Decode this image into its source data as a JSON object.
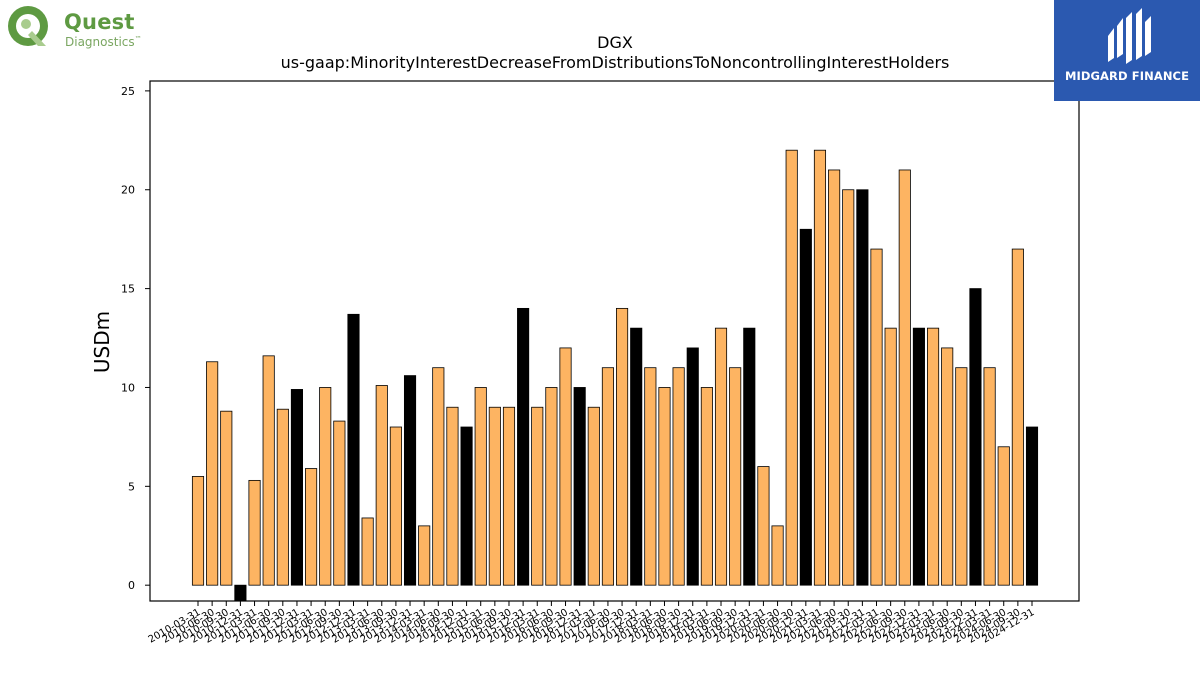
{
  "logos": {
    "quest": {
      "name": "Quest",
      "sub": "Diagnostics",
      "mark": "™"
    },
    "midgard": {
      "name": "MIDGARD FINANCE"
    }
  },
  "colors": {
    "highlight": "#fdb462",
    "emphasis": "#000000"
  },
  "chart_data": {
    "type": "bar",
    "title": "DGX",
    "subtitle": "us-gaap:MinorityInterestDecreaseFromDistributionsToNoncontrollingInterestHolders",
    "xlabel": "",
    "ylabel": "USDm",
    "ylim": [
      -0.8,
      25.5
    ],
    "yticks": [
      0,
      5,
      10,
      15,
      20,
      25
    ],
    "grid": false,
    "categories": [
      "2010-03-31",
      "2010-06-30",
      "2010-09-30",
      "2010-12-31",
      "2011-03-31",
      "2011-06-30",
      "2011-09-30",
      "2011-12-31",
      "2012-03-31",
      "2012-06-30",
      "2012-09-30",
      "2012-12-31",
      "2013-03-31",
      "2013-06-30",
      "2013-09-30",
      "2013-12-31",
      "2014-03-31",
      "2014-06-30",
      "2014-09-30",
      "2014-12-31",
      "2015-03-31",
      "2015-06-30",
      "2015-09-30",
      "2015-12-31",
      "2016-03-31",
      "2016-06-30",
      "2016-09-30",
      "2016-12-31",
      "2017-03-31",
      "2017-06-30",
      "2017-09-30",
      "2017-12-31",
      "2018-03-31",
      "2018-06-30",
      "2018-09-30",
      "2018-12-31",
      "2019-03-31",
      "2019-06-30",
      "2019-09-30",
      "2019-12-31",
      "2020-03-31",
      "2020-06-30",
      "2020-09-30",
      "2020-12-31",
      "2021-03-31",
      "2021-06-30",
      "2021-09-30",
      "2021-12-31",
      "2022-03-31",
      "2022-06-30",
      "2022-09-30",
      "2022-12-31",
      "2023-03-31",
      "2023-06-30",
      "2023-09-30",
      "2023-12-31",
      "2024-03-31",
      "2024-06-30",
      "2024-09-30",
      "2024-12-31"
    ],
    "values": [
      5.5,
      11.3,
      8.8,
      -0.8,
      5.3,
      11.6,
      8.9,
      9.9,
      5.9,
      10.0,
      8.3,
      13.7,
      3.4,
      10.1,
      8.0,
      10.6,
      3.0,
      11.0,
      9.0,
      8.0,
      10.0,
      9.0,
      9.0,
      14.0,
      9.0,
      10.0,
      12.0,
      10.0,
      9.0,
      11.0,
      14.0,
      13.0,
      11.0,
      10.0,
      11.0,
      12.0,
      10.0,
      13.0,
      11.0,
      13.0,
      6.0,
      3.0,
      22.0,
      18.0,
      22.0,
      21.0,
      20.0,
      20.0,
      17.0,
      13.0,
      21.0,
      13.0,
      13.0,
      12.0,
      11.0,
      15.0,
      11.0,
      7.0,
      17.0,
      8.0
    ],
    "emphasis": [
      false,
      false,
      false,
      true,
      false,
      false,
      false,
      true,
      false,
      false,
      false,
      true,
      false,
      false,
      false,
      true,
      false,
      false,
      false,
      true,
      false,
      false,
      false,
      true,
      false,
      false,
      false,
      true,
      false,
      false,
      false,
      true,
      false,
      false,
      false,
      true,
      false,
      false,
      false,
      true,
      false,
      false,
      false,
      true,
      false,
      false,
      false,
      true,
      false,
      false,
      false,
      true,
      false,
      false,
      false,
      true,
      false,
      false,
      false,
      true
    ]
  }
}
